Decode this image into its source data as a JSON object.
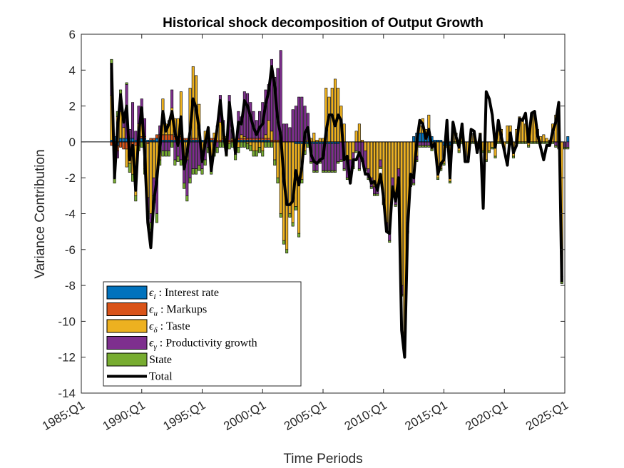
{
  "chart_data": {
    "type": "bar",
    "title": "Historical shock decomposition of Output Growth",
    "xlabel": "Time Periods",
    "ylabel": "Variance Contribution",
    "ylim": [
      -14,
      6
    ],
    "yticks": [
      "6",
      "4",
      "2",
      "0",
      "-2",
      "-4",
      "-6",
      "-8",
      "-10",
      "-12",
      "-14"
    ],
    "xlim": [
      1985.0,
      2025.0
    ],
    "xticks": [
      "1985:Q1",
      "1990:Q1",
      "1995:Q1",
      "2000:Q1",
      "2005:Q1",
      "2010:Q1",
      "2015:Q1",
      "2020:Q1",
      "2025:Q1"
    ],
    "x_start": 1987.5,
    "x_step": 0.25,
    "legend_position": "bottom-left",
    "grid": false,
    "series": [
      {
        "name": "ϵi : Interest rate",
        "symbol": "ϵ",
        "sub": "i",
        "desc": " : Interest rate",
        "color": "#0072BD",
        "values": [
          0.1,
          0.3,
          -0.2,
          0.2,
          0.2,
          0.2,
          0.2,
          0.2,
          0.1,
          0.0,
          0.2,
          0.2,
          0.1,
          0.1,
          0.1,
          0.2,
          0.1,
          0.1,
          0.1,
          0.1,
          0.1,
          0.1,
          0.1,
          0.1,
          0.1,
          0.1,
          0.1,
          0.1,
          0.1,
          0.1,
          0.1,
          0.1,
          0.1,
          0.1,
          0.1,
          0.0,
          0.0,
          0.1,
          0.1,
          0.0,
          0.0,
          0.0,
          0.1,
          0.1,
          0.1,
          0.1,
          0.1,
          0.1,
          0.1,
          0.1,
          0.1,
          0.1,
          0.1,
          0.0,
          0.0,
          0.0,
          0.1,
          0.0,
          0.0,
          0.0,
          0.0,
          -0.1,
          -0.1,
          -0.1,
          -0.1,
          -0.1,
          -0.1,
          -0.1,
          -0.1,
          -0.1,
          -0.1,
          -0.1,
          -0.1,
          -0.1,
          -0.1,
          -0.1,
          0.0,
          0.0,
          0.0,
          0.0,
          0.0,
          0.0,
          0.0,
          0.0,
          0.0,
          0.0,
          0.0,
          0.0,
          0.0,
          0.0,
          0.0,
          0.0,
          0.0,
          0.0,
          0.0,
          0.0,
          0.0,
          0.0,
          0.0,
          0.0,
          0.3,
          0.5,
          0.5,
          0.5,
          0.5,
          0.5,
          0.3,
          0.1,
          0.1,
          0.1,
          -0.2,
          -0.2,
          -0.2,
          0.0,
          0.0,
          0.0,
          0.0,
          0.0,
          0.0,
          0.0,
          0.0,
          0.0,
          0.0,
          0.0,
          0.0,
          0.0,
          0.0,
          0.0,
          0.0,
          0.0,
          0.0,
          0.0,
          0.0,
          0.0,
          0.0,
          0.0,
          0.0,
          0.0,
          0.0,
          0.0,
          0.0,
          0.0,
          0.0,
          0.0,
          0.0,
          0.0,
          0.0,
          0.0,
          0.0,
          0.0,
          0.0,
          0.3
        ]
      },
      {
        "name": "ϵu : Markups",
        "symbol": "ϵ",
        "sub": "u",
        "desc": " : Markups",
        "color": "#D95319",
        "values": [
          -0.2,
          -0.3,
          -0.3,
          -0.3,
          -0.4,
          -0.4,
          -0.4,
          -0.3,
          -0.2,
          -0.2,
          0.1,
          0.1,
          -0.1,
          0.1,
          0.1,
          0.2,
          0.3,
          0.3,
          0.3,
          0.3,
          0.3,
          0.2,
          0.2,
          0.2,
          0.1,
          0.1,
          0.1,
          0.1,
          0.1,
          0.0,
          0.0,
          0.0,
          0.1,
          0.1,
          0.1,
          0.1,
          0.1,
          0.1,
          0.1,
          0.1,
          0.1,
          0.1,
          0.1,
          0.1,
          0.1,
          0.1,
          0.1,
          0.1,
          0.1,
          0.1,
          0.1,
          0.1,
          0.1,
          0.1,
          0.1,
          0.1,
          0.0,
          0.0,
          0.0,
          0.0,
          0.0,
          0.0,
          0.0,
          0.0,
          0.0,
          0.0,
          0.0,
          0.0,
          0.0,
          0.0,
          0.0,
          0.0,
          0.0,
          0.0,
          0.0,
          0.0,
          0.0,
          0.0,
          0.0,
          0.0,
          0.0,
          0.0,
          0.0,
          0.0,
          0.0,
          0.0,
          0.0,
          0.0,
          0.0,
          0.0,
          0.0,
          0.0,
          0.0,
          0.0,
          0.0,
          0.0,
          0.0,
          0.0,
          0.0,
          0.0,
          0.0,
          0.0,
          0.0,
          0.0,
          0.0,
          0.0,
          0.0,
          0.0,
          0.0,
          0.0,
          0.0,
          0.0,
          0.0,
          0.0,
          0.0,
          0.0,
          0.0,
          0.0,
          0.0,
          0.0,
          0.0,
          0.0,
          0.0,
          0.0,
          0.0,
          0.0,
          0.0,
          0.0,
          0.0,
          0.0,
          0.0,
          0.0,
          0.0,
          0.0,
          0.0,
          0.0,
          0.0,
          0.0,
          0.0,
          0.0,
          0.0,
          0.0,
          0.0,
          0.0,
          0.0,
          0.0,
          0.0,
          0.0,
          0.0,
          0.0,
          0.0
        ]
      },
      {
        "name": "ϵδ : Taste",
        "symbol": "ϵ",
        "sub": "δ",
        "desc": " : Taste",
        "color": "#EDB120",
        "values": [
          2.5,
          -0.2,
          1.4,
          1.5,
          0.6,
          -1.0,
          -0.8,
          -1.5,
          -2.8,
          1.0,
          0.9,
          -1.5,
          -3.0,
          -4.0,
          -2.0,
          -2.0,
          -1.0,
          2.0,
          0.6,
          0.8,
          1.5,
          1.0,
          1.0,
          2.5,
          -0.8,
          -1.0,
          2.8,
          4.0,
          3.5,
          2.0,
          -0.5,
          0.5,
          0.6,
          -1.5,
          0.3,
          0.8,
          1.0,
          0.5,
          0.1,
          -0.1,
          0.1,
          -0.2,
          -0.3,
          0.2,
          0.1,
          -0.1,
          -0.2,
          -0.5,
          -0.5,
          -0.3,
          -0.5,
          0.2,
          1.0,
          0.5,
          -1.0,
          -2.0,
          -4.0,
          -5.5,
          -6.0,
          -4.0,
          -4.5,
          -3.5,
          -5.0,
          -2.0,
          -0.4,
          0.1,
          0.2,
          0.5,
          0.1,
          0.2,
          0.2,
          3.0,
          2.5,
          3.0,
          3.5,
          3.0,
          2.0,
          1.0,
          -1.0,
          -1.0,
          -0.6,
          0.6,
          1.0,
          0.1,
          -0.5,
          -1.5,
          -2.0,
          -2.5,
          -2.5,
          -1.0,
          -3.0,
          -4.5,
          -5.0,
          -2.0,
          -3.0,
          -1.5,
          -8.0,
          -11.0,
          -4.5,
          -2.0,
          -2.0,
          -0.8,
          0.4,
          0.8,
          0.2,
          1.0,
          -0.4,
          -0.2,
          -2.0,
          -1.5,
          -1.0,
          1.0,
          -2.0,
          1.0,
          0.5,
          -0.5,
          1.0,
          -1.0,
          -1.0,
          0.5,
          0.5,
          -0.5,
          0.5,
          -0.5,
          -1.0,
          -0.5,
          -0.3,
          -0.8,
          0.6,
          0.7,
          -0.4,
          0.9,
          0.9,
          -0.8,
          0.7,
          1.4,
          1.3,
          1.0,
          -0.2,
          1.6,
          1.7,
          0.7,
          0.3,
          0.4,
          0.2,
          0.1,
          1.0,
          1.5,
          1.5,
          -7.5
        ]
      },
      {
        "name": "ϵγ : Productivity growth",
        "symbol": "ϵ",
        "sub": "γ",
        "desc": " : Productivity growth",
        "color": "#7E2F8E",
        "values": [
          1.5,
          -1.5,
          -0.4,
          1.0,
          0.5,
          3.0,
          0.5,
          2.0,
          0.5,
          1.0,
          1.2,
          1.0,
          -0.8,
          -0.5,
          -1.0,
          -2.0,
          0.5,
          -0.5,
          -0.5,
          -0.5,
          1.0,
          -1.0,
          -0.8,
          -1.0,
          -1.5,
          -2.0,
          -2.0,
          -1.5,
          -1.5,
          -1.3,
          -1.0,
          -1.0,
          -0.3,
          0.0,
          -0.5,
          -0.3,
          1.5,
          0.5,
          -0.5,
          2.5,
          0.5,
          -0.5,
          1.5,
          1.0,
          2.5,
          2.5,
          2.0,
          1.5,
          1.0,
          1.5,
          2.0,
          2.5,
          2.0,
          4.0,
          3.5,
          4.0,
          5.0,
          1.0,
          1.0,
          0.8,
          1.8,
          2.0,
          2.5,
          2.5,
          2.0,
          1.5,
          -1.0,
          -1.5,
          -1.5,
          -1.0,
          -1.5,
          -1.5,
          -1.5,
          -1.5,
          -1.5,
          -1.0,
          -1.0,
          -1.5,
          -1.0,
          -1.2,
          -0.8,
          -0.5,
          -1.5,
          -1.0,
          -1.0,
          -0.5,
          -0.5,
          -0.4,
          -0.4,
          -0.4,
          -0.4,
          -0.4,
          -0.5,
          -0.5,
          -0.5,
          -0.5,
          -0.5,
          -0.8,
          -0.5,
          -0.4,
          -0.3,
          -0.2,
          -0.2,
          -0.2,
          -0.2,
          -0.2,
          0.0,
          0.0,
          0.0,
          0.0,
          0.0,
          0.0,
          0.0,
          0.0,
          0.0,
          0.0,
          0.0,
          0.0,
          0.0,
          0.0,
          0.0,
          0.0,
          0.0,
          0.0,
          0.0,
          0.0,
          0.0,
          0.0,
          0.0,
          0.0,
          0.0,
          0.0,
          0.0,
          0.0,
          0.0,
          0.0,
          0.0,
          0.0,
          0.0,
          0.0,
          0.0,
          0.0,
          0.0,
          0.0,
          0.0,
          0.0,
          0.0,
          -0.2,
          -0.3,
          -0.3,
          -0.3,
          -0.3
        ]
      },
      {
        "name": "State",
        "symbol": "",
        "sub": "",
        "desc": "State",
        "color": "#77AC30",
        "values": [
          0.5,
          -0.3,
          0.3,
          0.2,
          0.2,
          0.1,
          -0.5,
          -0.4,
          -0.3,
          -0.3,
          -0.3,
          -0.3,
          -0.4,
          -0.4,
          -0.4,
          -0.5,
          -0.3,
          -0.3,
          -0.3,
          -0.3,
          -0.3,
          -0.3,
          -0.3,
          -0.3,
          -0.3,
          -0.3,
          -0.3,
          -0.3,
          -0.3,
          -0.3,
          -0.3,
          -0.3,
          -0.3,
          -0.3,
          -0.3,
          -0.3,
          -0.3,
          -0.3,
          -0.3,
          -0.3,
          -0.3,
          -0.3,
          -0.3,
          -0.3,
          -0.3,
          -0.3,
          -0.3,
          -0.3,
          -0.3,
          -0.3,
          -0.3,
          -0.3,
          -0.3,
          -0.3,
          -0.3,
          -0.3,
          -0.2,
          -0.2,
          -0.2,
          -0.2,
          -0.2,
          -0.2,
          -0.2,
          -0.2,
          -0.2,
          -0.2,
          -0.1,
          -0.1,
          -0.1,
          -0.1,
          -0.1,
          -0.1,
          -0.1,
          -0.1,
          -0.1,
          -0.1,
          -0.1,
          -0.1,
          -0.1,
          -0.1,
          -0.1,
          -0.1,
          -0.1,
          -0.1,
          -0.1,
          -0.1,
          -0.1,
          -0.1,
          -0.1,
          -0.1,
          -0.1,
          -0.1,
          -0.1,
          -0.1,
          -0.1,
          -0.1,
          -0.1,
          -0.1,
          -0.1,
          -0.1,
          -0.1,
          -0.1,
          -0.1,
          -0.1,
          -0.1,
          -0.1,
          -0.1,
          -0.1,
          -0.1,
          -0.1,
          -0.1,
          -0.1,
          -0.1,
          -0.1,
          -0.1,
          -0.1,
          -0.1,
          -0.1,
          -0.1,
          -0.1,
          -0.1,
          -0.1,
          -0.1,
          -0.1,
          -0.1,
          -0.1,
          -0.1,
          -0.1,
          -0.1,
          -0.1,
          -0.1,
          -0.1,
          -0.1,
          -0.1,
          -0.1,
          -0.1,
          -0.1,
          -0.1,
          -0.1,
          -0.1,
          -0.1,
          -0.1,
          -0.1,
          -0.1,
          -0.1,
          -0.1,
          -0.1,
          -0.1,
          -0.1,
          -0.1,
          -0.1,
          -0.1
        ]
      },
      {
        "name": "Total",
        "symbol": "",
        "sub": "",
        "desc": "Total",
        "color": "#000000",
        "kind": "line",
        "values": [
          4.4,
          -2.0,
          0.8,
          2.6,
          1.1,
          2.0,
          -1.0,
          -0.2,
          -2.7,
          0.5,
          1.9,
          -0.8,
          -4.5,
          -5.9,
          -3.3,
          -2.1,
          -0.2,
          1.7,
          0.6,
          1.0,
          1.7,
          0.5,
          -0.2,
          1.4,
          -1.5,
          -0.6,
          0.6,
          2.4,
          1.9,
          0.7,
          -1.1,
          -0.1,
          0.8,
          -1.6,
          -0.3,
          0.8,
          2.3,
          0.6,
          -0.7,
          2.2,
          0.8,
          -0.6,
          1.1,
          1.0,
          2.3,
          2.0,
          1.4,
          0.8,
          0.4,
          0.8,
          1.0,
          2.1,
          2.8,
          4.2,
          3.1,
          1.2,
          0.4,
          -2.0,
          -3.5,
          -3.5,
          -3.3,
          -1.6,
          -2.4,
          -1.4,
          0.5,
          0.8,
          -0.7,
          -1.1,
          -1.2,
          -1.0,
          -0.9,
          0.6,
          1.5,
          1.5,
          0.9,
          1.5,
          1.2,
          -1.0,
          -0.8,
          -2.3,
          -1.0,
          -1.0,
          -0.6,
          -1.0,
          -1.8,
          -1.8,
          -2.3,
          -2.2,
          -2.7,
          -1.8,
          -3.1,
          -5.0,
          -5.1,
          -2.5,
          -3.3,
          -2.0,
          -10.5,
          -12.0,
          -4.8,
          -1.8,
          -2.0,
          0.0,
          1.2,
          1.0,
          0.2,
          0.7,
          -0.3,
          -0.1,
          -1.8,
          -1.2,
          -1.0,
          1.2,
          -2.0,
          1.1,
          0.3,
          -0.3,
          1.0,
          -1.1,
          -1.1,
          0.7,
          0.6,
          -0.6,
          0.4,
          -3.7,
          2.8,
          2.4,
          1.5,
          -0.3,
          1.2,
          0.3,
          -0.5,
          -1.3,
          0.5,
          -0.6,
          -0.2,
          1.3,
          1.2,
          1.6,
          0.0,
          1.6,
          1.7,
          0.4,
          -0.3,
          -1.0,
          -0.2,
          -0.2,
          0.6,
          1.1,
          2.2,
          -7.8
        ]
      }
    ]
  }
}
